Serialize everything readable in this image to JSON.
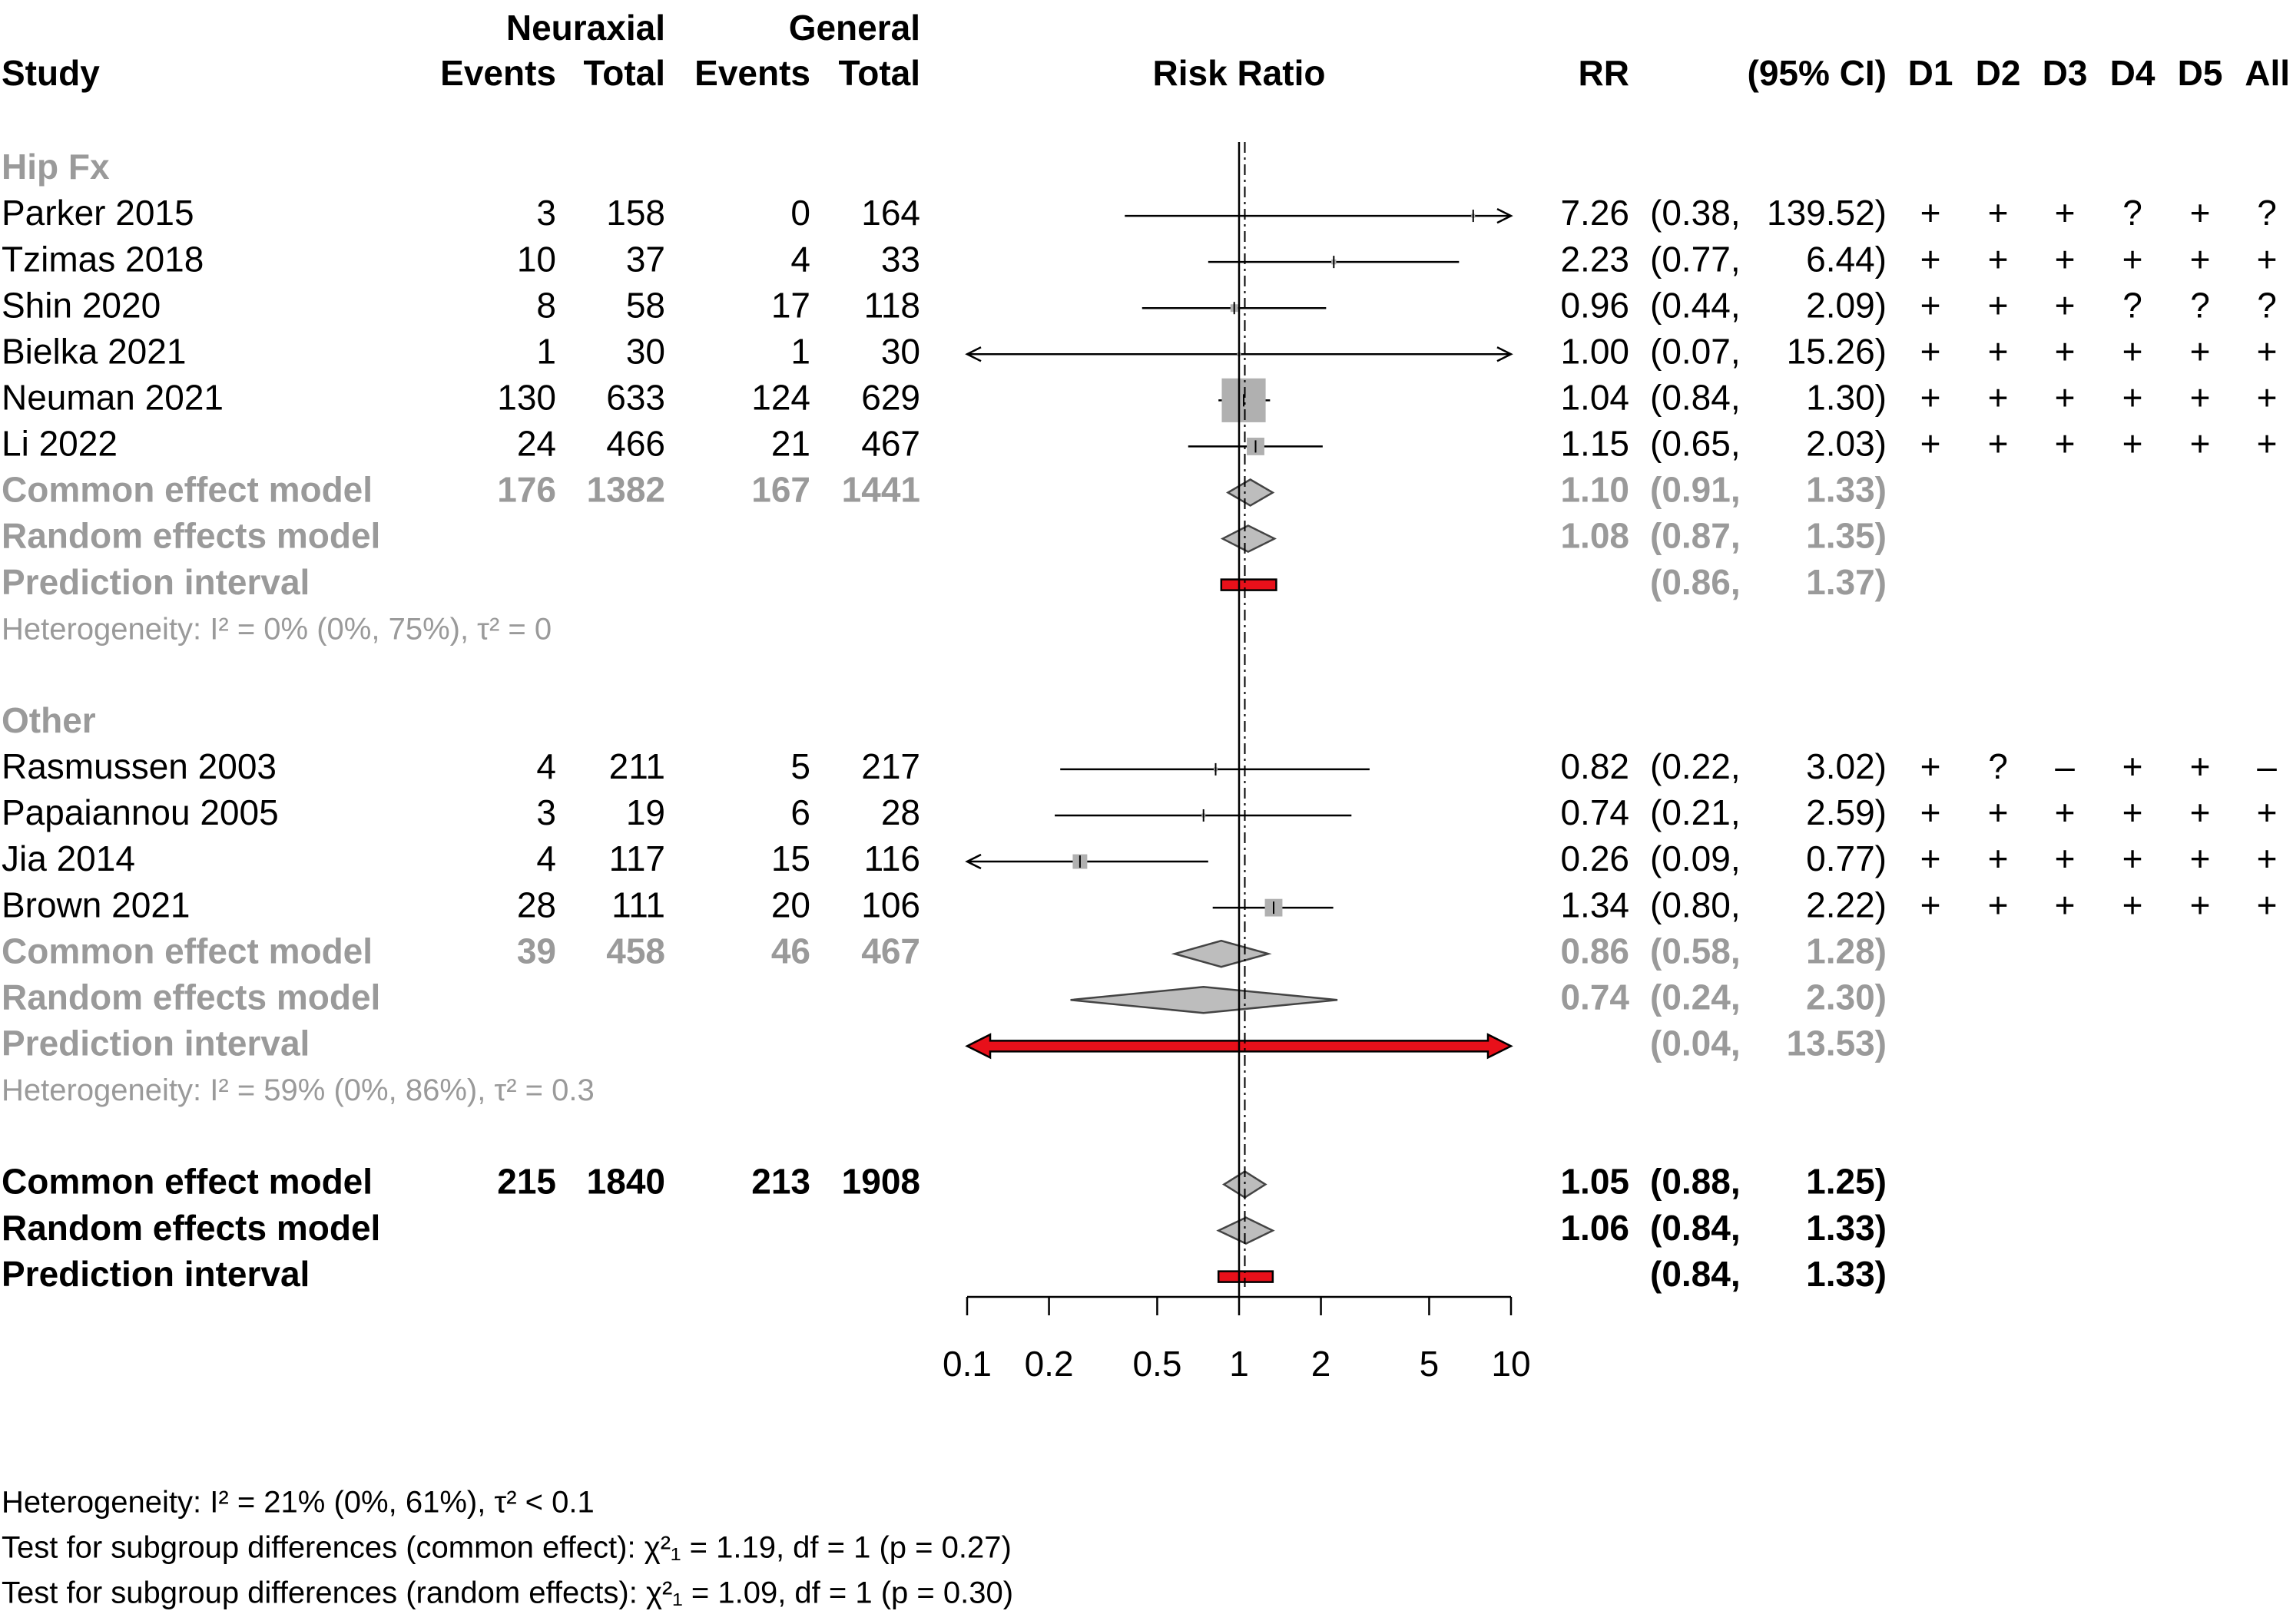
{
  "chart_data": {
    "type": "forest",
    "headers": {
      "study": "Study",
      "group1": "Neuraxial",
      "group2": "General",
      "events": "Events",
      "total": "Total",
      "plot": "Risk Ratio",
      "rr": "RR",
      "ci": "(95% CI)",
      "rob": [
        "D1",
        "D2",
        "D3",
        "D4",
        "D5",
        "All"
      ]
    },
    "xlim": [
      0.1,
      10
    ],
    "xticks": [
      0.1,
      0.2,
      0.5,
      1,
      2,
      5,
      10
    ],
    "log": true,
    "reference": 1,
    "subgroups": [
      {
        "label": "Hip Fx",
        "studies": [
          {
            "name": "Parker 2015",
            "events1": 3,
            "total1": 158,
            "events2": 0,
            "total2": 164,
            "rr": 7.26,
            "rr_label": "7.26",
            "lower": 0.38,
            "upper": 139.52,
            "lower_label": "(0.38,",
            "upper_label": "139.52)",
            "weight": 0.2,
            "rob": [
              "+",
              "+",
              "+",
              "?",
              "+",
              "?"
            ]
          },
          {
            "name": "Tzimas 2018",
            "events1": 10,
            "total1": 37,
            "events2": 4,
            "total2": 33,
            "rr": 2.23,
            "rr_label": "2.23",
            "lower": 0.77,
            "upper": 6.44,
            "lower_label": "(0.77,",
            "upper_label": "6.44)",
            "weight": 0.5,
            "rob": [
              "+",
              "+",
              "+",
              "+",
              "+",
              "+"
            ]
          },
          {
            "name": "Shin 2020",
            "events1": 8,
            "total1": 58,
            "events2": 17,
            "total2": 118,
            "rr": 0.96,
            "rr_label": "0.96",
            "lower": 0.44,
            "upper": 2.09,
            "lower_label": "(0.44,",
            "upper_label": "2.09)",
            "weight": 1.2,
            "rob": [
              "+",
              "+",
              "+",
              "?",
              "?",
              "?"
            ]
          },
          {
            "name": "Bielka 2021",
            "events1": 1,
            "total1": 30,
            "events2": 1,
            "total2": 30,
            "rr": 1.0,
            "rr_label": "1.00",
            "lower": 0.07,
            "upper": 15.26,
            "lower_label": "(0.07,",
            "upper_label": "15.26)",
            "weight": 0.2,
            "rob": [
              "+",
              "+",
              "+",
              "+",
              "+",
              "+"
            ]
          },
          {
            "name": "Neuman 2021",
            "events1": 130,
            "total1": 633,
            "events2": 124,
            "total2": 629,
            "rr": 1.04,
            "rr_label": "1.04",
            "lower": 0.84,
            "upper": 1.3,
            "lower_label": "(0.84,",
            "upper_label": "1.30)",
            "weight": 40,
            "rob": [
              "+",
              "+",
              "+",
              "+",
              "+",
              "+"
            ]
          },
          {
            "name": "Li 2022",
            "events1": 24,
            "total1": 466,
            "events2": 21,
            "total2": 467,
            "rr": 1.15,
            "rr_label": "1.15",
            "lower": 0.65,
            "upper": 2.03,
            "lower_label": "(0.65,",
            "upper_label": "2.03)",
            "weight": 6.4,
            "rob": [
              "+",
              "+",
              "+",
              "+",
              "+",
              "+"
            ]
          }
        ],
        "common": {
          "label": "Common effect model",
          "events1": 176,
          "total1": 1382,
          "events2": 167,
          "total2": 1441,
          "rr": 1.1,
          "rr_label": "1.10",
          "lower": 0.91,
          "upper": 1.33,
          "lower_label": "(0.91,",
          "upper_label": "1.33)"
        },
        "random": {
          "label": "Random effects model",
          "rr": 1.08,
          "rr_label": "1.08",
          "lower": 0.87,
          "upper": 1.35,
          "lower_label": "(0.87,",
          "upper_label": "1.35)"
        },
        "prediction": {
          "label": "Prediction interval",
          "lower": 0.86,
          "upper": 1.37,
          "lower_label": "(0.86,",
          "upper_label": "1.37)"
        },
        "heterogeneity": "Heterogeneity: I² = 0% (0%, 75%), τ² = 0"
      },
      {
        "label": "Other",
        "studies": [
          {
            "name": "Rasmussen 2003",
            "events1": 4,
            "total1": 211,
            "events2": 5,
            "total2": 217,
            "rr": 0.82,
            "rr_label": "0.82",
            "lower": 0.22,
            "upper": 3.02,
            "lower_label": "(0.22,",
            "upper_label": "3.02)",
            "weight": 0.3,
            "rob": [
              "+",
              "?",
              "–",
              "+",
              "+",
              "–"
            ]
          },
          {
            "name": "Papaiannou 2005",
            "events1": 3,
            "total1": 19,
            "events2": 6,
            "total2": 28,
            "rr": 0.74,
            "rr_label": "0.74",
            "lower": 0.21,
            "upper": 2.59,
            "lower_label": "(0.21,",
            "upper_label": "2.59)",
            "weight": 0.3,
            "rob": [
              "+",
              "+",
              "+",
              "+",
              "+",
              "+"
            ]
          },
          {
            "name": "Jia 2014",
            "events1": 4,
            "total1": 117,
            "events2": 15,
            "total2": 116,
            "rr": 0.26,
            "rr_label": "0.26",
            "lower": 0.09,
            "upper": 0.77,
            "lower_label": "(0.09,",
            "upper_label": "0.77)",
            "weight": 4.4,
            "rob": [
              "+",
              "+",
              "+",
              "+",
              "+",
              "+"
            ]
          },
          {
            "name": "Brown 2021",
            "events1": 28,
            "total1": 111,
            "events2": 20,
            "total2": 106,
            "rr": 1.34,
            "rr_label": "1.34",
            "lower": 0.8,
            "upper": 2.22,
            "lower_label": "(0.80,",
            "upper_label": "2.22)",
            "weight": 6.4,
            "rob": [
              "+",
              "+",
              "+",
              "+",
              "+",
              "+"
            ]
          }
        ],
        "common": {
          "label": "Common effect model",
          "events1": 39,
          "total1": 458,
          "events2": 46,
          "total2": 467,
          "rr": 0.86,
          "rr_label": "0.86",
          "lower": 0.58,
          "upper": 1.28,
          "lower_label": "(0.58,",
          "upper_label": "1.28)"
        },
        "random": {
          "label": "Random effects model",
          "rr": 0.74,
          "rr_label": "0.74",
          "lower": 0.24,
          "upper": 2.3,
          "lower_label": "(0.24,",
          "upper_label": "2.30)"
        },
        "prediction": {
          "label": "Prediction interval",
          "lower": 0.04,
          "upper": 13.53,
          "lower_label": "(0.04,",
          "upper_label": "13.53)"
        },
        "heterogeneity": "Heterogeneity: I² = 59% (0%, 86%), τ² = 0.3"
      }
    ],
    "overall": {
      "common": {
        "label": "Common effect model",
        "events1": 215,
        "total1": 1840,
        "events2": 213,
        "total2": 1908,
        "rr": 1.05,
        "rr_label": "1.05",
        "lower": 0.88,
        "upper": 1.25,
        "lower_label": "(0.88,",
        "upper_label": "1.25)"
      },
      "random": {
        "label": "Random effects model",
        "rr": 1.06,
        "rr_label": "1.06",
        "lower": 0.84,
        "upper": 1.33,
        "lower_label": "(0.84,",
        "upper_label": "1.33)"
      },
      "prediction": {
        "label": "Prediction interval",
        "lower": 0.84,
        "upper": 1.33,
        "lower_label": "(0.84,",
        "upper_label": "1.33)"
      }
    },
    "footnotes": [
      "Heterogeneity: I² = 21% (0%, 61%), τ² < 0.1",
      "Test for subgroup differences (common effect): χ²₁ = 1.19, df = 1 (p = 0.27)",
      "Test for subgroup differences (random effects): χ²₁ = 1.09, df = 1 (p = 0.30)"
    ]
  }
}
